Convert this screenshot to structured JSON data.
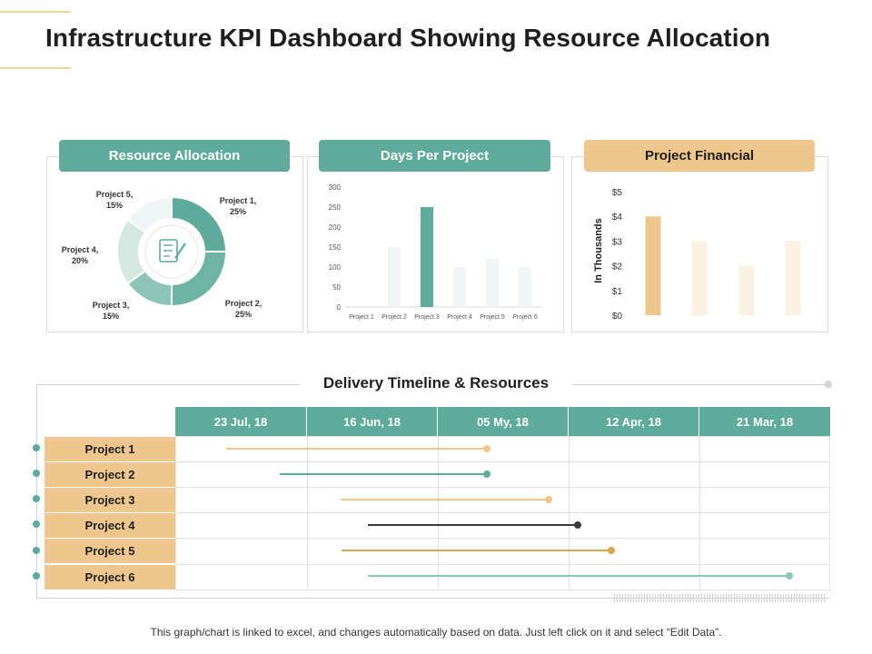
{
  "title": "Infrastructure KPI Dashboard Showing Resource Allocation",
  "colors": {
    "teal": "#5fab9b",
    "teal_light": "#8dc4b8",
    "teal_pale": "#d4e8e2",
    "teal_faint": "#eef5f4",
    "sand": "#efc68d",
    "sand_pale": "#fbf1e3",
    "gold": "#d9a64a",
    "dark": "#3a3a3a"
  },
  "panels": {
    "resource_allocation": {
      "header": "Resource Allocation",
      "icon": "checklist-icon"
    },
    "days_per_project": {
      "header": "Days Per Project"
    },
    "project_financial": {
      "header": "Project Financial"
    }
  },
  "chart_data": [
    {
      "type": "pie",
      "variant": "donut",
      "labels": [
        "Project 1,",
        "Project 2,",
        "Project 3,",
        "Project 4,",
        "Project 5,"
      ],
      "values": [
        25,
        25,
        15,
        20,
        15
      ],
      "value_labels": [
        "25%",
        "25%",
        "15%",
        "20%",
        "15%"
      ],
      "colors": [
        "#5fab9b",
        "#6fb3a4",
        "#8dc4b8",
        "#d4e8e2",
        "#eef5f4"
      ]
    },
    {
      "type": "bar",
      "categories": [
        "Project 1",
        "Project 2",
        "Project 3",
        "Project 4",
        "Project 5",
        "Project 6"
      ],
      "values": [
        0,
        150,
        250,
        100,
        120,
        100
      ],
      "highlight_index": 2,
      "ylim": [
        0,
        300
      ],
      "yticks": [
        0,
        50,
        100,
        150,
        200,
        250,
        300
      ],
      "grid": false
    },
    {
      "type": "bar",
      "categories": [
        "",
        "",
        "",
        ""
      ],
      "values": [
        4,
        3,
        2,
        3
      ],
      "highlight_index": 0,
      "ylabel": "In Thousands",
      "ylim": [
        0,
        5
      ],
      "yticks": [
        0,
        1,
        2,
        3,
        4,
        5
      ],
      "ytick_labels": [
        "$0",
        "$1",
        "$2",
        "$3",
        "$4",
        "$5"
      ],
      "grid": false
    }
  ],
  "timeline": {
    "title": "Delivery Timeline & Resources",
    "dates": [
      "23 Jul, 18",
      "16 Jun, 18",
      "05 My, 18",
      "12 Apr, 18",
      "21 Mar, 18"
    ],
    "projects": [
      {
        "label": "Project 1",
        "start": 0.39,
        "end": 2.38,
        "color": "#efc68d"
      },
      {
        "label": "Project 2",
        "start": 0.8,
        "end": 2.38,
        "color": "#5fab9b"
      },
      {
        "label": "Project 3",
        "start": 1.26,
        "end": 2.85,
        "color": "#efc68d"
      },
      {
        "label": "Project 4",
        "start": 1.47,
        "end": 3.07,
        "color": "#3a3a3a"
      },
      {
        "label": "Project 5",
        "start": 1.27,
        "end": 3.33,
        "color": "#d9a64a"
      },
      {
        "label": "Project 6",
        "start": 1.47,
        "end": 4.69,
        "color": "#8dc4b8"
      }
    ]
  },
  "footnote": "This graph/chart is linked to excel, and changes automatically based on data. Just left click on it and select “Edit Data”."
}
